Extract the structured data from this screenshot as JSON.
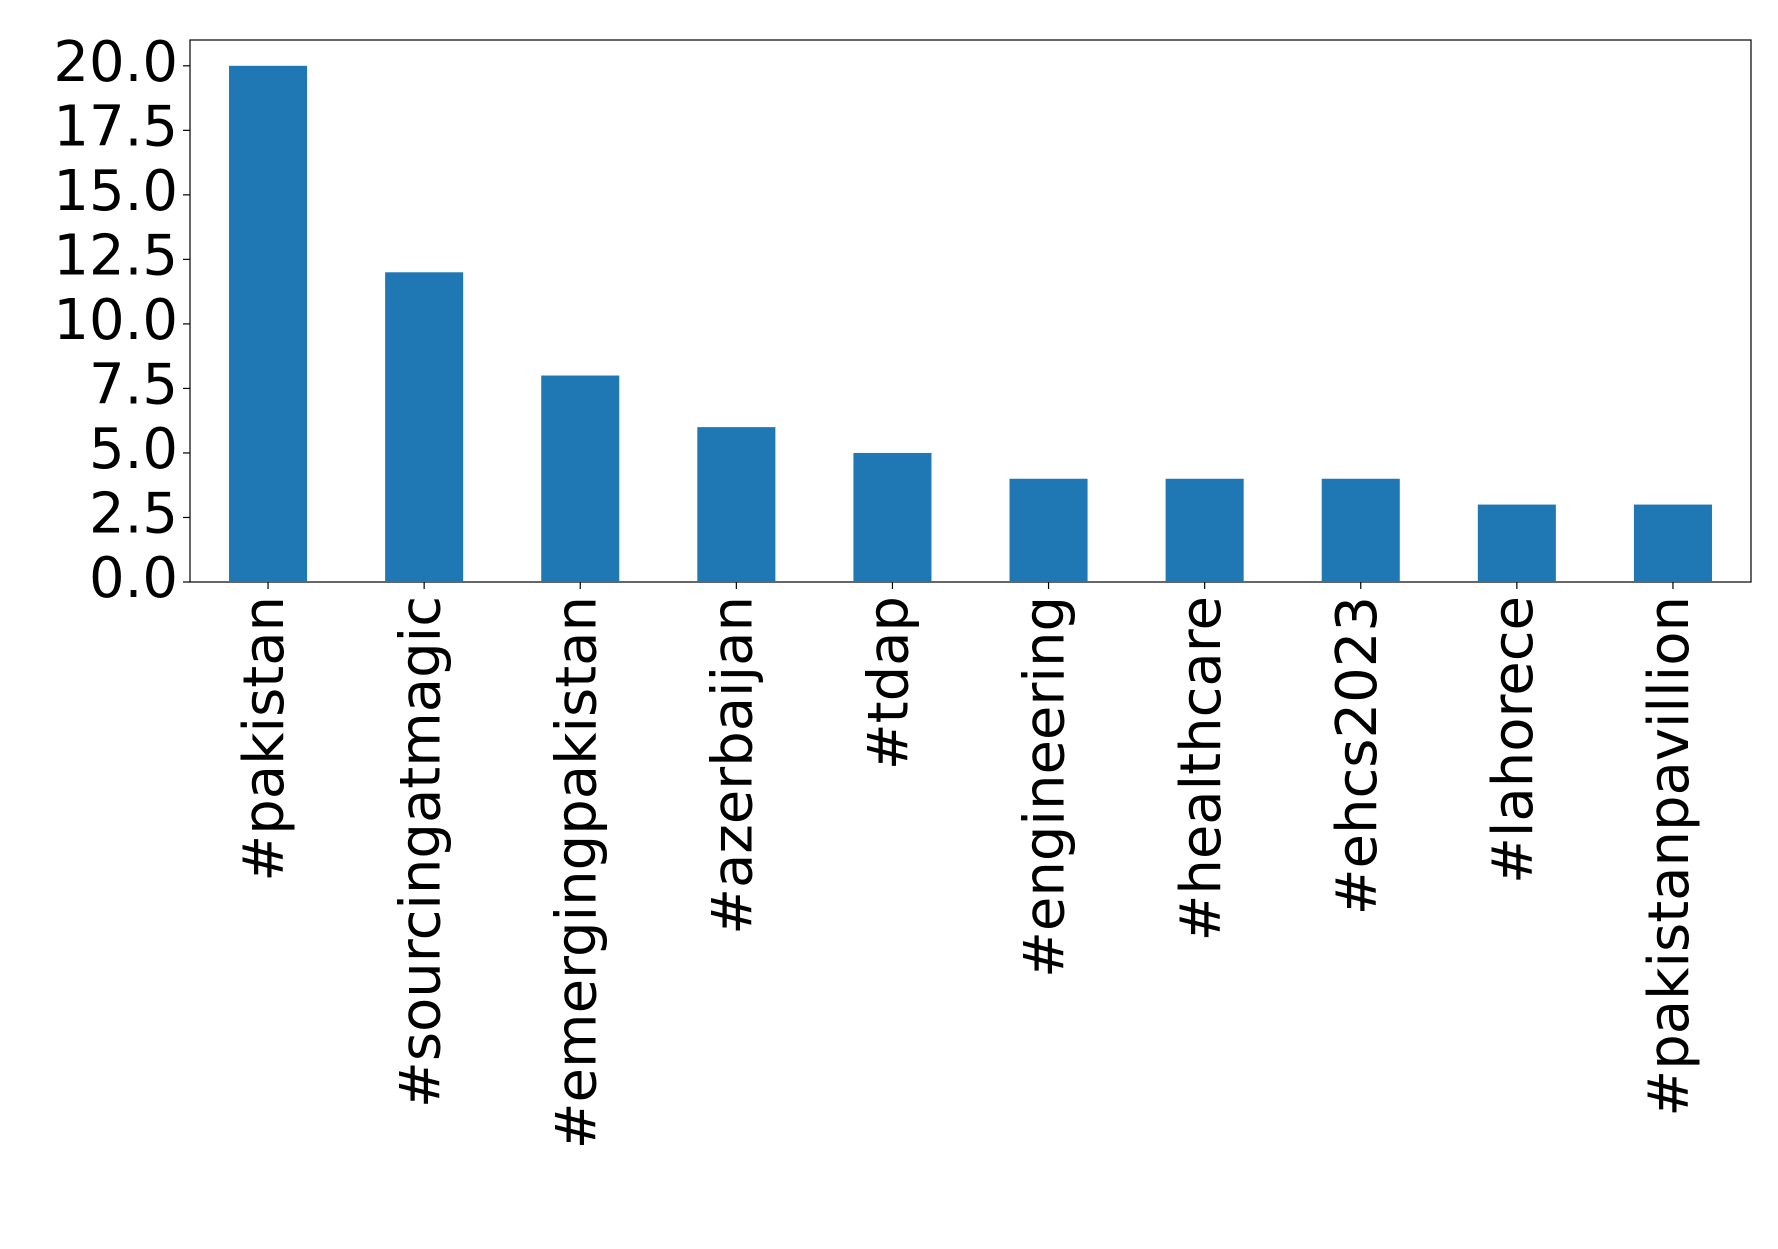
{
  "chart_data": {
    "type": "bar",
    "categories": [
      "#pakistan",
      "#sourcingatmagic",
      "#emergingpakistan",
      "#azerbaijan",
      "#tdap",
      "#engineering",
      "#healthcare",
      "#ehcs2023",
      "#lahorece",
      "#pakistanpavillion"
    ],
    "values": [
      20,
      12,
      8,
      6,
      5,
      4,
      4,
      4,
      3,
      3
    ],
    "color": "#1f77b4",
    "ylim": [
      0,
      21
    ],
    "yticks": [
      {
        "value": 0,
        "label": "0.0"
      },
      {
        "value": 2.5,
        "label": "2.5"
      },
      {
        "value": 5,
        "label": "5.0"
      },
      {
        "value": 7.5,
        "label": "7.5"
      },
      {
        "value": 10,
        "label": "10.0"
      },
      {
        "value": 12.5,
        "label": "12.5"
      },
      {
        "value": 15,
        "label": "15.0"
      },
      {
        "value": 17.5,
        "label": "17.5"
      },
      {
        "value": 20,
        "label": "20.0"
      }
    ],
    "grid": false
  }
}
